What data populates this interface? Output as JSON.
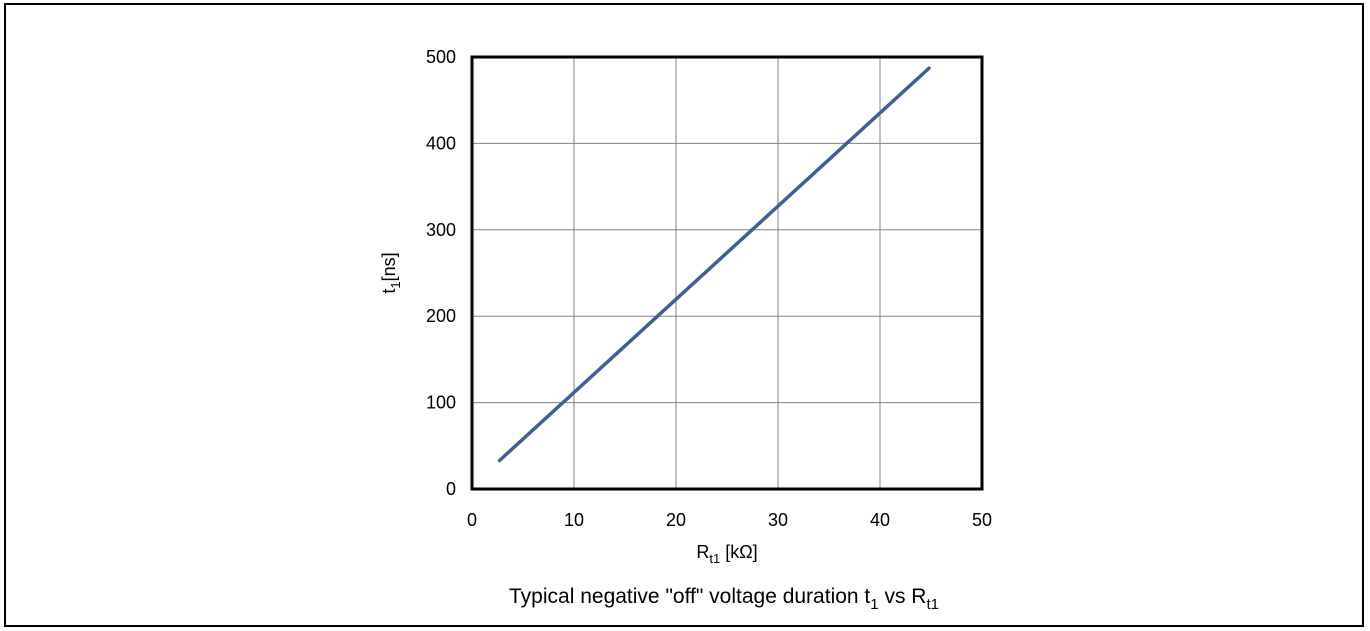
{
  "chart_data": {
    "type": "line",
    "caption": {
      "main": "Typical negative \"off\" voltage duration t",
      "sub1": "1",
      "mid": " vs R",
      "sub2": "t1"
    },
    "xlabel": {
      "main": "R",
      "sub": "t1",
      "rest": " [kΩ]"
    },
    "ylabel": {
      "main": "t",
      "sub": "1",
      "rest": "[ns]"
    },
    "xlim": [
      0,
      50
    ],
    "ylim": [
      0,
      500
    ],
    "xticks": [
      "0",
      "10",
      "20",
      "30",
      "40",
      "50"
    ],
    "yticks": [
      "0",
      "100",
      "200",
      "300",
      "400",
      "500"
    ],
    "grid": true,
    "series": [
      {
        "x": [
          2.7,
          44.8
        ],
        "y": [
          33,
          487
        ]
      }
    ],
    "colors": {
      "line": "#3f5e96",
      "grid": "#808080",
      "axes": "#000000"
    }
  }
}
